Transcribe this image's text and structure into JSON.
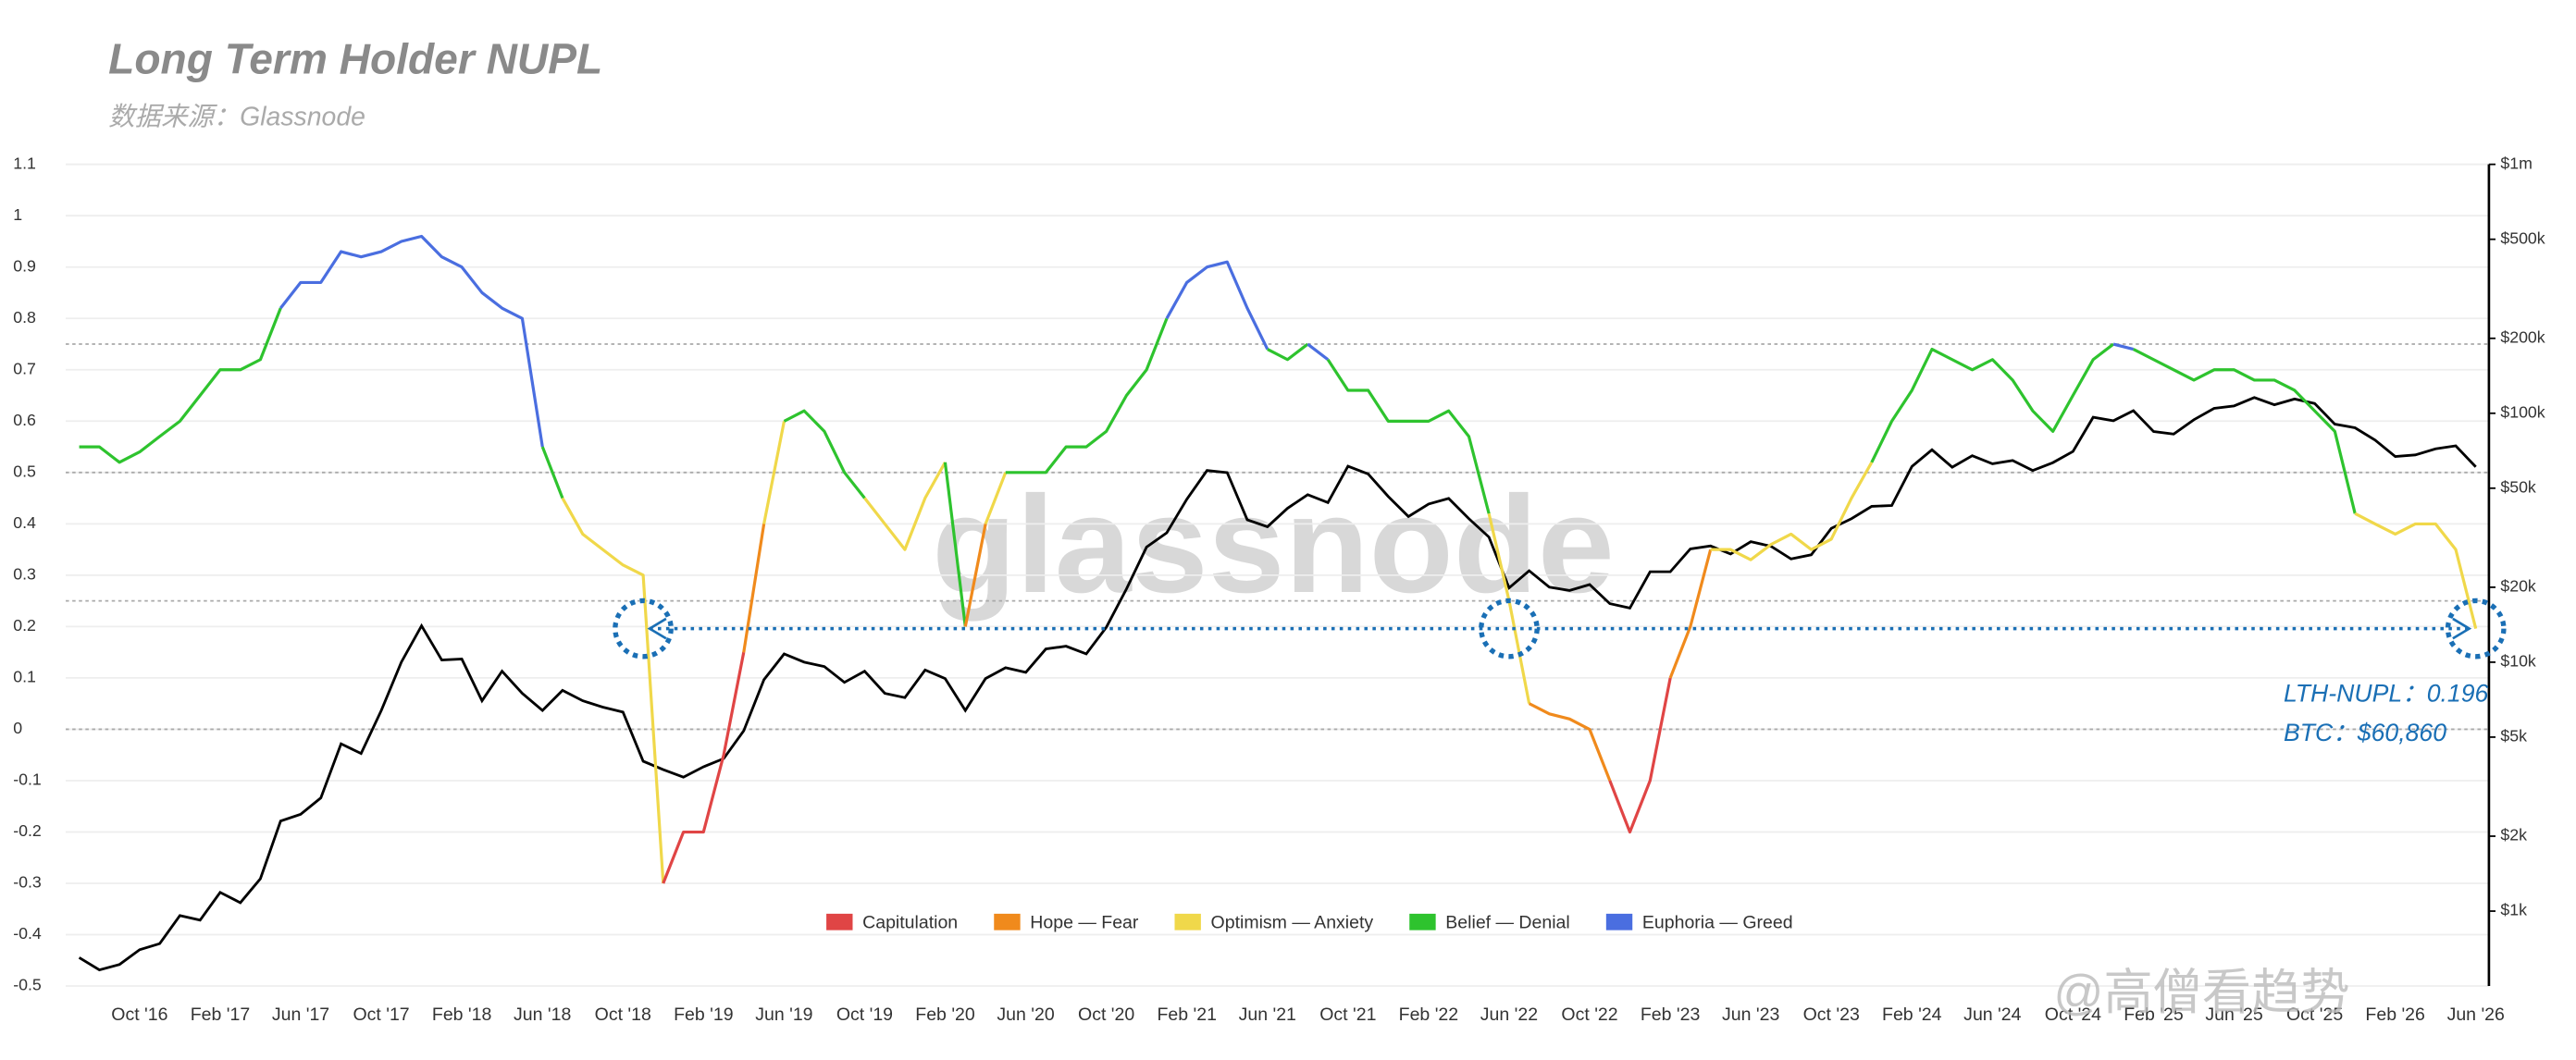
{
  "chart_data": {
    "type": "line",
    "title": "Long Term Holder NUPL",
    "subtitle": "数据来源：Glassnode",
    "watermark": "glassnode",
    "credit": "@高僧看趋势",
    "annotations": [
      "LTH-NUPL：0.196",
      "BTC：$60,860"
    ],
    "categories": [
      null,
      null,
      null,
      "Oct '16",
      null,
      null,
      null,
      "Feb '17",
      null,
      null,
      null,
      "Jun '17",
      null,
      null,
      null,
      "Oct '17",
      null,
      null,
      null,
      "Feb '18",
      null,
      null,
      null,
      "Jun '18",
      null,
      null,
      null,
      "Oct '18",
      null,
      null,
      null,
      "Feb '19",
      null,
      null,
      null,
      "Jun '19",
      null,
      null,
      null,
      "Oct '19",
      null,
      null,
      null,
      "Feb '20",
      null,
      null,
      null,
      "Jun '20",
      null,
      null,
      null,
      "Oct '20",
      null,
      null,
      null,
      "Feb '21",
      null,
      null,
      null,
      "Jun '21",
      null,
      null,
      null,
      "Oct '21",
      null,
      null,
      null,
      "Feb '22",
      null,
      null,
      null,
      "Jun '22",
      null,
      null,
      null,
      "Oct '22",
      null,
      null,
      null,
      "Feb '23",
      null,
      null,
      null,
      "Jun '23",
      null,
      null,
      null,
      "Oct '23",
      null,
      null,
      null,
      "Feb '24",
      null,
      null,
      null,
      "Jun '24",
      null,
      null,
      null,
      "Oct '24",
      null,
      null,
      null,
      "Feb '25",
      null,
      null,
      null,
      "Jun '25",
      null,
      null,
      null,
      "Oct '25",
      null,
      null,
      null,
      "Feb '26",
      null,
      null,
      null,
      "Jun '26"
    ],
    "zones": [
      {
        "name": "Capitulation",
        "color": "#e04545",
        "max": 0
      },
      {
        "name": "Hope — Fear",
        "color": "#f08a1c",
        "max": 0.25
      },
      {
        "name": "Optimism — Anxiety",
        "color": "#f0d84a",
        "max": 0.5
      },
      {
        "name": "Belief — Denial",
        "color": "#2ec32e",
        "max": 0.75
      },
      {
        "name": "Euphoria — Greed",
        "color": "#4a6ee0"
      }
    ],
    "series": [
      {
        "values": [
          0.55,
          0.55,
          0.52,
          0.54,
          0.57,
          0.6,
          0.65,
          0.7,
          0.7,
          0.72,
          0.82,
          0.87,
          0.87,
          0.93,
          0.92,
          0.93,
          0.95,
          0.96,
          0.92,
          0.9,
          0.85,
          0.82,
          0.8,
          0.55,
          0.45,
          0.38,
          0.35,
          0.32,
          0.3,
          -0.3,
          -0.2,
          -0.2,
          -0.05,
          0.15,
          0.4,
          0.6,
          0.62,
          0.58,
          0.5,
          0.45,
          0.4,
          0.35,
          0.45,
          0.52,
          0.2,
          0.4,
          0.5,
          0.5,
          0.5,
          0.55,
          0.55,
          0.58,
          0.65,
          0.7,
          0.8,
          0.87,
          0.9,
          0.91,
          0.82,
          0.74,
          0.72,
          0.75,
          0.72,
          0.66,
          0.66,
          0.6,
          0.6,
          0.6,
          0.62,
          0.57,
          0.42,
          0.25,
          0.05,
          0.03,
          0.02,
          0,
          -0.1,
          -0.2,
          -0.1,
          0.1,
          0.2,
          0.35,
          0.35,
          0.33,
          0.36,
          0.38,
          0.35,
          0.37,
          0.45,
          0.52,
          0.6,
          0.66,
          0.74,
          0.72,
          0.7,
          0.72,
          0.68,
          0.62,
          0.58,
          0.65,
          0.72,
          0.75,
          0.74,
          0.72,
          0.7,
          0.68,
          0.7,
          0.7,
          0.68,
          0.68,
          0.66,
          0.62,
          0.58,
          0.42,
          0.4,
          0.38,
          0.4,
          0.4,
          0.35,
          0.196
        ]
      },
      {
        "axis": "y2",
        "color": "#000000",
        "values": [
          650,
          580,
          610,
          700,
          740,
          960,
          920,
          1190,
          1080,
          1350,
          2300,
          2450,
          2850,
          4700,
          4300,
          6400,
          10000,
          14000,
          10200,
          10300,
          7000,
          9200,
          7500,
          6400,
          7700,
          7000,
          6600,
          6300,
          4000,
          3700,
          3450,
          3800,
          4100,
          5300,
          8500,
          10800,
          10000,
          9600,
          8300,
          9200,
          7500,
          7200,
          9300,
          8600,
          6400,
          8600,
          9500,
          9100,
          11300,
          11600,
          10800,
          13800,
          19700,
          29000,
          33100,
          45100,
          58900,
          57700,
          37300,
          35000,
          41500,
          47100,
          43800,
          61300,
          57000,
          46300,
          38500,
          43200,
          45500,
          37700,
          31800,
          19900,
          23300,
          20000,
          19400,
          20500,
          17200,
          16500,
          23100,
          23100,
          28500,
          29300,
          27200,
          30500,
          29200,
          26000,
          27000,
          34500,
          37700,
          42300,
          42600,
          61200,
          71300,
          60700,
          67500,
          62700,
          64600,
          58900,
          63300,
          70200,
          96400,
          93400,
          102400,
          84400,
          82500,
          94200,
          104600,
          107100,
          115700,
          108200,
          114000,
          109500,
          90400,
          87500,
          78000,
          67000,
          68000,
          72000,
          74000,
          60860
        ]
      }
    ],
    "ylim": [
      -0.5,
      1.1
    ],
    "yticks": [
      -0.5,
      -0.4,
      -0.3,
      -0.2,
      -0.1,
      0,
      0.1,
      0.2,
      0.3,
      0.4,
      0.5,
      0.6,
      0.7,
      0.8,
      0.9,
      1,
      1.1
    ],
    "y2lim": [
      500,
      1000000
    ],
    "y2log": true,
    "y2ticks": [
      {
        "value": 1000,
        "label": "$1k"
      },
      {
        "value": 2000,
        "label": "$2k"
      },
      {
        "value": 5000,
        "label": "$5k"
      },
      {
        "value": 10000,
        "label": "$10k"
      },
      {
        "value": 20000,
        "label": "$20k"
      },
      {
        "value": 50000,
        "label": "$50k"
      },
      {
        "value": 100000,
        "label": "$100k"
      },
      {
        "value": 200000,
        "label": "$200k"
      },
      {
        "value": 500000,
        "label": "$500k"
      },
      {
        "value": 1000000,
        "label": "$1m"
      }
    ],
    "grid": true
  }
}
